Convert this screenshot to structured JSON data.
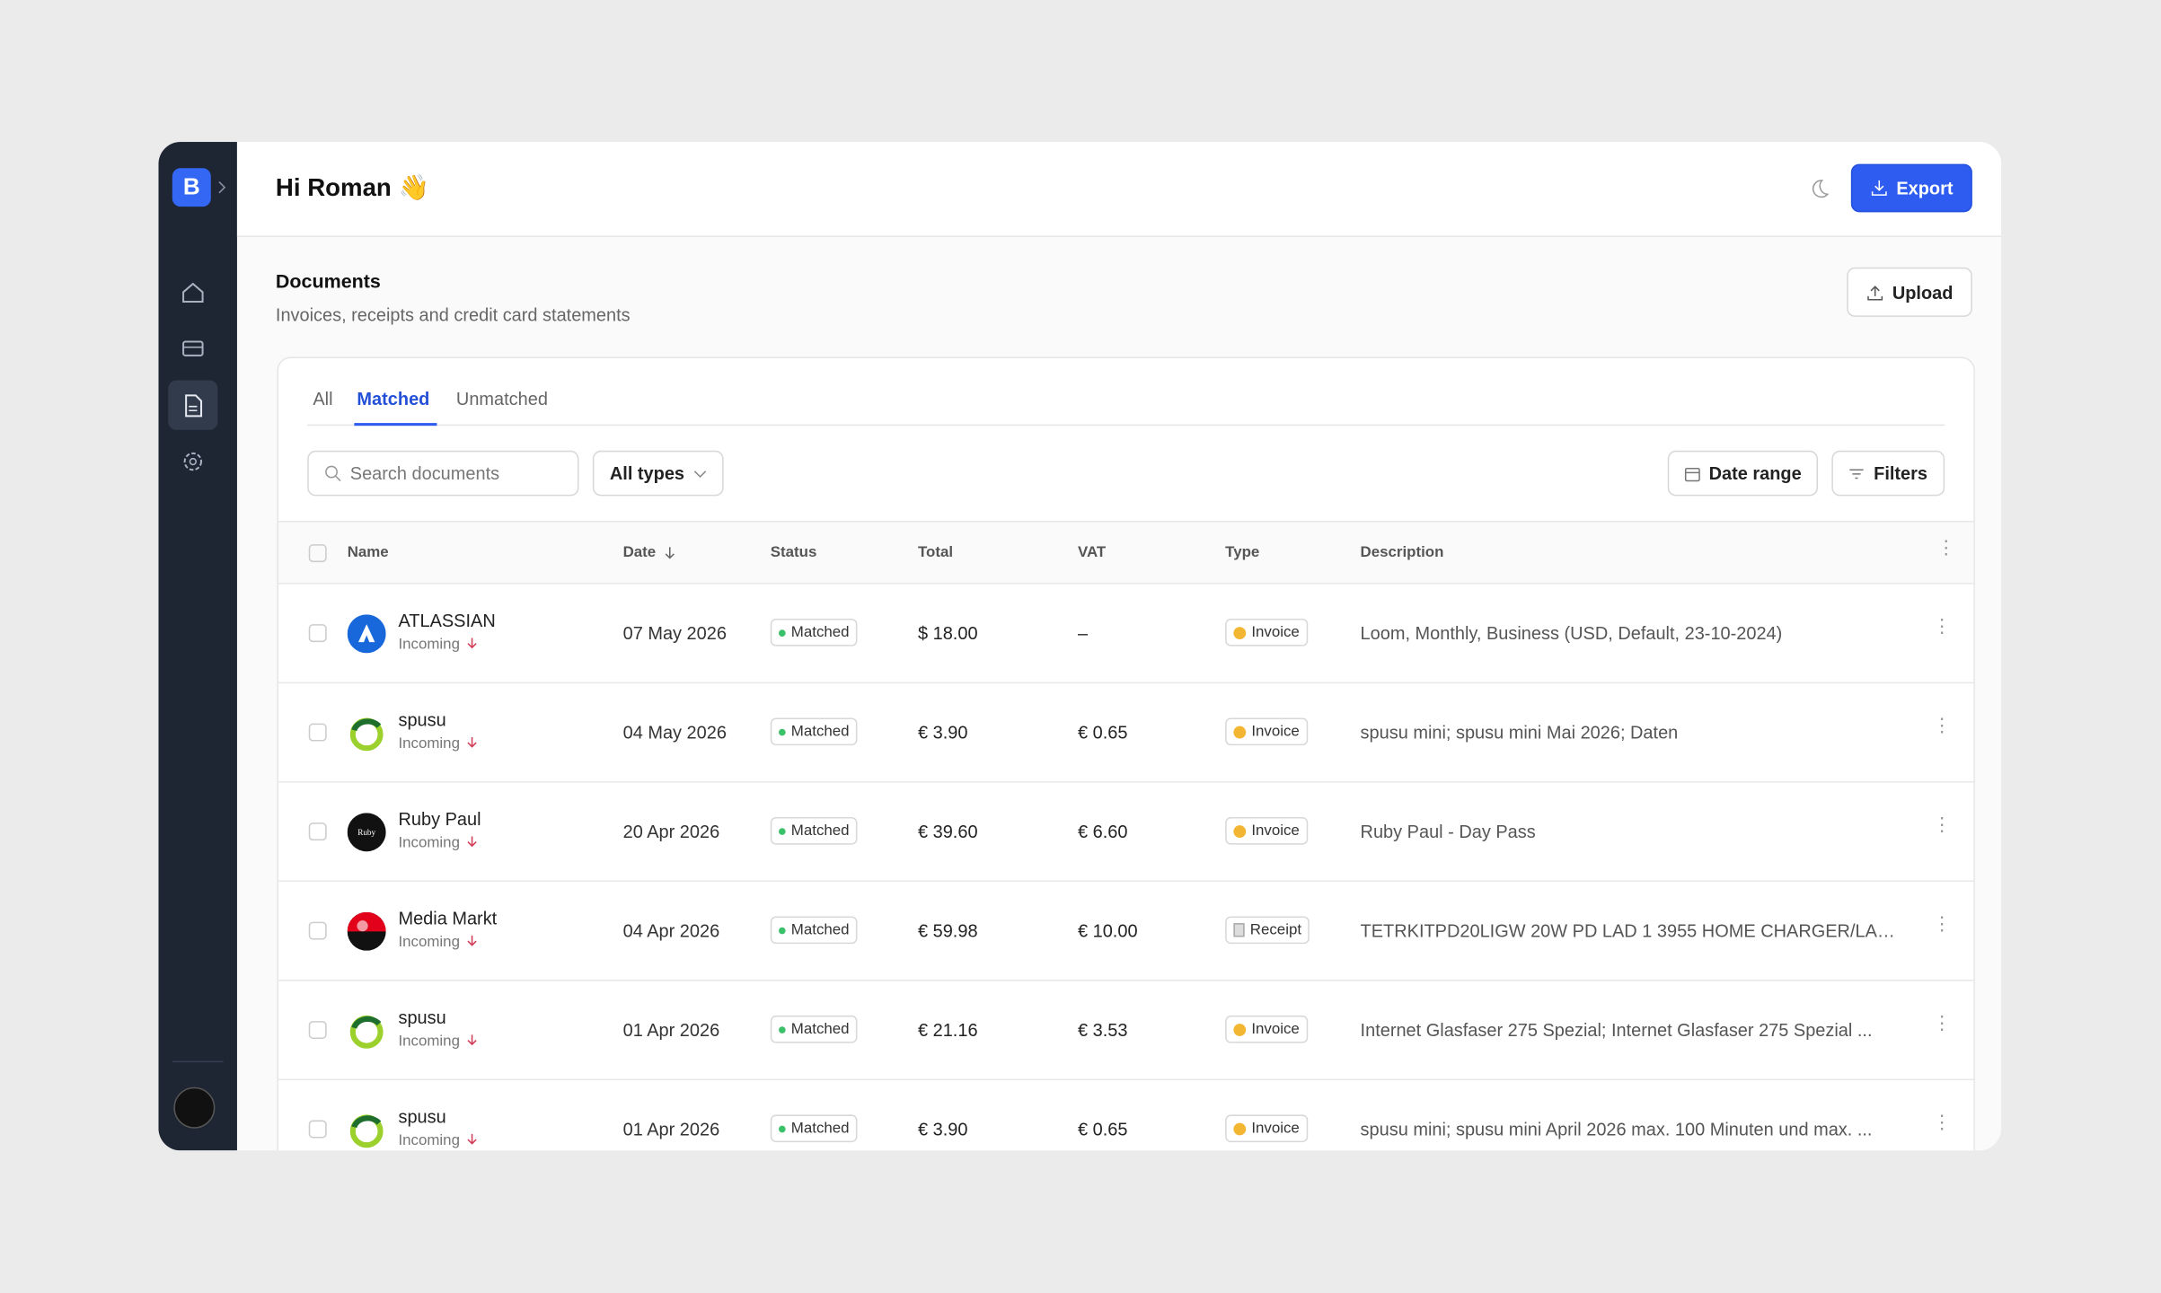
{
  "sidebar": {
    "logo": "B"
  },
  "header": {
    "greeting": "Hi Roman 👋",
    "export": "Export"
  },
  "documents": {
    "title": "Documents",
    "subtitle": "Invoices, receipts and credit card statements",
    "upload": "Upload"
  },
  "tabs": [
    "All",
    "Matched",
    "Unmatched"
  ],
  "toolbar": {
    "search_placeholder": "Search documents",
    "type_filter": "All types",
    "date_range": "Date range",
    "filters": "Filters"
  },
  "table": {
    "columns": [
      "Name",
      "Date",
      "Status",
      "Total",
      "VAT",
      "Type",
      "Description"
    ],
    "rows": [
      {
        "name": "ATLASSIAN",
        "direction": "Incoming",
        "date": "07 May 2026",
        "status": "Matched",
        "total": "$ 18.00",
        "vat": "–",
        "type": "Invoice",
        "description": "Loom, Monthly, Business (USD, Default, 23-10-2024)"
      },
      {
        "name": "spusu",
        "direction": "Incoming",
        "date": "04 May 2026",
        "status": "Matched",
        "total": "€ 3.90",
        "vat": "€ 0.65",
        "type": "Invoice",
        "description": "spusu mini; spusu mini Mai 2026; Daten"
      },
      {
        "name": "Ruby Paul",
        "direction": "Incoming",
        "date": "20 Apr 2026",
        "status": "Matched",
        "total": "€ 39.60",
        "vat": "€ 6.60",
        "type": "Invoice",
        "description": "Ruby Paul - Day Pass"
      },
      {
        "name": "Media Markt",
        "direction": "Incoming",
        "date": "04 Apr 2026",
        "status": "Matched",
        "total": "€ 59.98",
        "vat": "€ 10.00",
        "type": "Receipt",
        "description": "TETRKITPD20LIGW 20W PD LAD 1 3955 HOME CHARGER/LAD..."
      },
      {
        "name": "spusu",
        "direction": "Incoming",
        "date": "01 Apr 2026",
        "status": "Matched",
        "total": "€ 21.16",
        "vat": "€ 3.53",
        "type": "Invoice",
        "description": "Internet Glasfaser 275 Spezial; Internet Glasfaser 275 Spezial ..."
      },
      {
        "name": "spusu",
        "direction": "Incoming",
        "date": "01 Apr 2026",
        "status": "Matched",
        "total": "€ 3.90",
        "vat": "€ 0.65",
        "type": "Invoice",
        "description": "spusu mini; spusu mini April 2026 max. 100 Minuten und max. ..."
      }
    ]
  }
}
